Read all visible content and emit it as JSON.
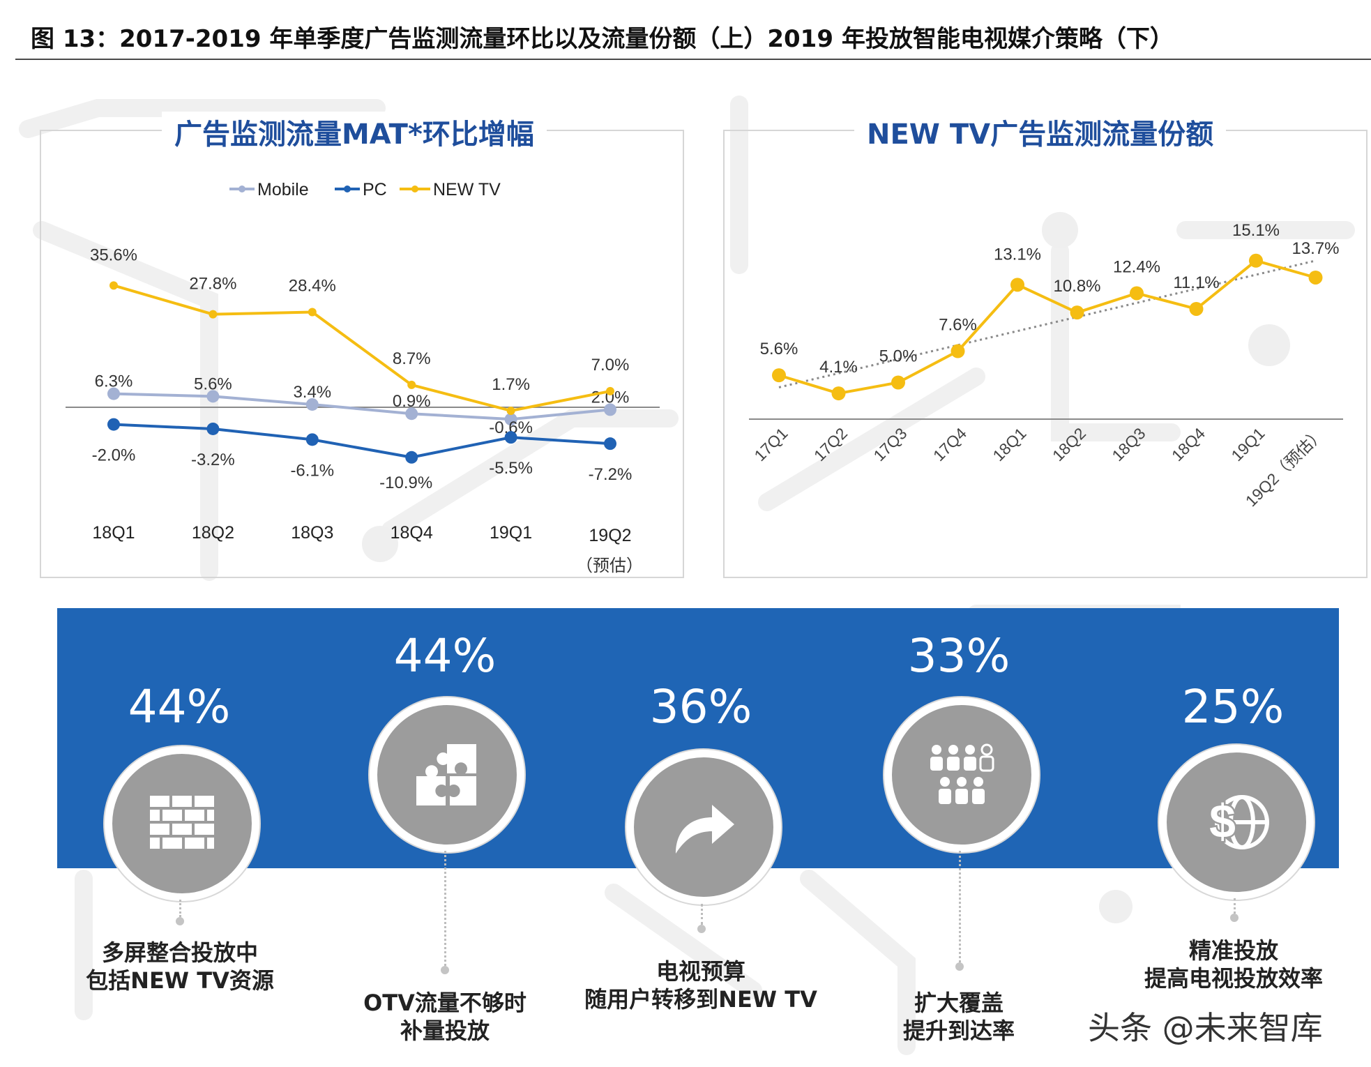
{
  "figure_title": "图 13：2017-2019 年单季度广告监测流量环比以及流量份额（上）2019 年投放智能电视媒介策略（下）",
  "chart_data": [
    {
      "type": "line",
      "title": "广告监测流量MAT*环比增幅",
      "categories": [
        "18Q1",
        "18Q2",
        "18Q3",
        "18Q4",
        "19Q1",
        "19Q2"
      ],
      "last_category_note": "（预估）",
      "series": [
        {
          "name": "Mobile",
          "color": "#a3b1d3",
          "values": [
            6.3,
            5.6,
            3.4,
            0.9,
            -0.6,
            2.0
          ],
          "labels": [
            "6.3%",
            "5.6%",
            "3.4%",
            "0.9%",
            "-0.6%",
            "2.0%"
          ]
        },
        {
          "name": "PC",
          "color": "#2062b4",
          "values": [
            -2.0,
            -3.2,
            -6.1,
            -10.9,
            -5.5,
            -7.2
          ],
          "labels": [
            "-2.0%",
            "-3.2%",
            "-6.1%",
            "-10.9%",
            "-5.5%",
            "-7.2%"
          ]
        },
        {
          "name": "NEW TV",
          "color": "#f5bd12",
          "values": [
            35.6,
            27.8,
            28.4,
            8.7,
            1.7,
            7.0
          ],
          "labels": [
            "35.6%",
            "27.8%",
            "28.4%",
            "8.7%",
            "1.7%",
            "7.0%"
          ]
        }
      ],
      "xlabel": "",
      "ylabel": "",
      "grid": false,
      "legend": "top"
    },
    {
      "type": "line",
      "title": "NEW TV广告监测流量份额",
      "categories": [
        "17Q1",
        "17Q2",
        "17Q3",
        "17Q4",
        "18Q1",
        "18Q2",
        "18Q3",
        "18Q4",
        "19Q1",
        "19Q2（预估）"
      ],
      "series": [
        {
          "name": "NEW TV",
          "color": "#f5bd12",
          "values": [
            5.6,
            4.1,
            5.0,
            7.6,
            13.1,
            10.8,
            12.4,
            11.1,
            15.1,
            13.7
          ],
          "labels": [
            "5.6%",
            "4.1%",
            "5.0%",
            "7.6%",
            "13.1%",
            "10.8%",
            "12.4%",
            "11.1%",
            "15.1%",
            "13.7%"
          ]
        }
      ],
      "trendline": true,
      "xlabel": "",
      "ylabel": "",
      "grid": false,
      "legend": "none"
    }
  ],
  "strategy": {
    "items": [
      {
        "value": "44%",
        "icon": "brick-wall-icon",
        "caption_lines": [
          "多屏整合投放中",
          "包括NEW TV资源"
        ]
      },
      {
        "value": "44%",
        "icon": "puzzle-icon",
        "caption_lines": [
          "OTV流量不够时",
          "补量投放"
        ]
      },
      {
        "value": "36%",
        "icon": "share-arrow-icon",
        "caption_lines": [
          "电视预算",
          "随用户转移到NEW TV"
        ]
      },
      {
        "value": "33%",
        "icon": "people-group-icon",
        "caption_lines": [
          "扩大覆盖",
          "提升到达率"
        ]
      },
      {
        "value": "25%",
        "icon": "dollar-globe-icon",
        "caption_lines": [
          "精准投放",
          "提高电视投放效率"
        ]
      }
    ],
    "colors": {
      "band": "#1f65b5",
      "circle": "#9c9c9c"
    }
  },
  "watermark": "头条 @未来智库"
}
